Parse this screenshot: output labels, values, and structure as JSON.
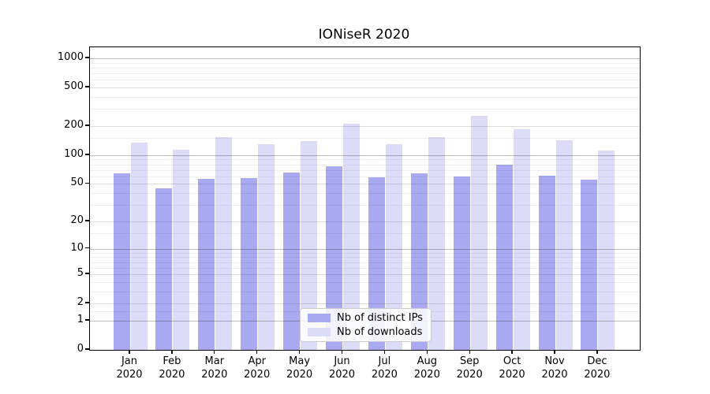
{
  "title": "IONiseR 2020",
  "chart_data": {
    "type": "bar",
    "title": "IONiseR 2020",
    "categories": [
      "Jan 2020",
      "Feb 2020",
      "Mar 2020",
      "Apr 2020",
      "May 2020",
      "Jun 2020",
      "Jul 2020",
      "Aug 2020",
      "Sep 2020",
      "Oct 2020",
      "Nov 2020",
      "Dec 2020"
    ],
    "series": [
      {
        "name": "Nb of distinct IPs",
        "color": "#a9a9f1",
        "values": [
          64,
          45,
          57,
          58,
          66,
          77,
          59,
          65,
          60,
          80,
          61,
          56
        ]
      },
      {
        "name": "Nb of downloads",
        "color": "#dcdcf8",
        "values": [
          135,
          113,
          155,
          131,
          140,
          213,
          129,
          154,
          253,
          185,
          144,
          112
        ]
      }
    ],
    "yscale": "log1p",
    "ylim": [
      0,
      1300
    ],
    "yticks": [
      0,
      1,
      2,
      5,
      10,
      20,
      50,
      100,
      200,
      500,
      1000
    ],
    "major_decades": [
      1,
      10,
      100,
      1000
    ],
    "minor_gridlines": [
      1.5,
      3,
      4,
      6,
      7,
      8,
      9,
      15,
      30,
      40,
      60,
      70,
      80,
      90,
      150,
      300,
      400,
      600,
      700,
      800,
      900
    ],
    "grid": true,
    "legend_position": "lower center",
    "xlabel": "",
    "ylabel": ""
  },
  "legend": {
    "items": [
      {
        "label": "Nb of distinct IPs",
        "color": "#a9a9f1"
      },
      {
        "label": "Nb of downloads",
        "color": "#dcdcf8"
      }
    ]
  },
  "colors": {
    "axis": "#000000",
    "grid_major": "#bdbdbd",
    "grid_minor": "#ededed",
    "background": "#ffffff"
  }
}
